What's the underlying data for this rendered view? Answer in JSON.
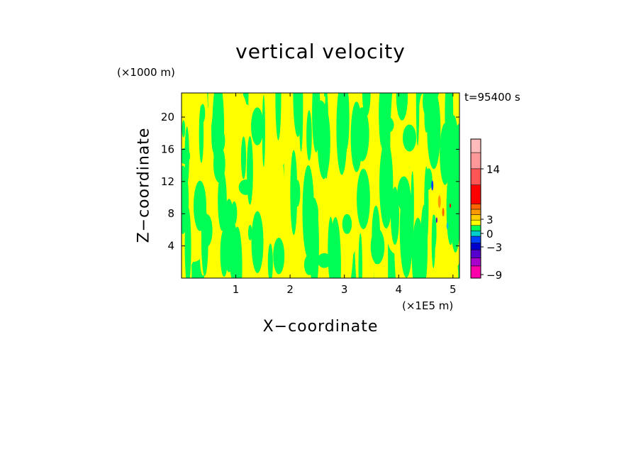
{
  "chart_data": {
    "type": "heatmap",
    "title": "vertical velocity",
    "xlabel": "X−coordinate",
    "ylabel": "Z−coordinate",
    "x_unit": "(×1E5 m)",
    "y_unit": "(×1000 m)",
    "annotation": "t=95400 s",
    "xlim": [
      0,
      5.12
    ],
    "ylim": [
      0,
      23
    ],
    "x_ticks": [
      "1",
      "2",
      "3",
      "4",
      "5"
    ],
    "y_ticks": [
      "4",
      "8",
      "12",
      "16",
      "20"
    ],
    "x_tick_values": [
      1,
      2,
      3,
      4,
      5
    ],
    "y_tick_values": [
      4,
      8,
      12,
      16,
      20
    ],
    "dominant_field_colors": {
      "positive": "#ffff00",
      "negative": "#00ff55"
    },
    "colorbar": {
      "tick_labels": [
        "14",
        "3",
        "0",
        "−3",
        "−9"
      ],
      "levels": [
        {
          "color": "#ff00aa"
        },
        {
          "color": "#aa00cc"
        },
        {
          "color": "#5500cc"
        },
        {
          "color": "#0000cc"
        },
        {
          "color": "#0044ff"
        },
        {
          "color": "#00cccc"
        },
        {
          "color": "#00ff55"
        },
        {
          "color": "#ffff00"
        },
        {
          "color": "#ffcc00"
        },
        {
          "color": "#ff9900"
        },
        {
          "color": "#ff6600"
        },
        {
          "color": "#ff0000"
        },
        {
          "color": "#ff5555"
        },
        {
          "color": "#ff9999"
        },
        {
          "color": "#ffbbbb"
        }
      ]
    }
  }
}
